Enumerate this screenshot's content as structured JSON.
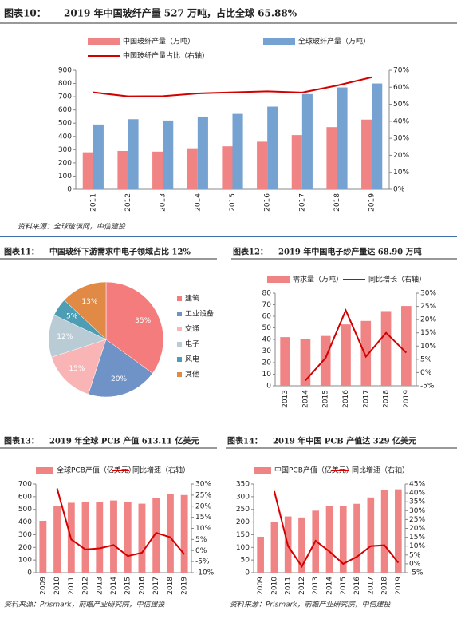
{
  "chart_data": [
    {
      "type": "combo",
      "figure_label": "图表10：",
      "title": "2019 年中国玻纤产量 527 万吨，占比全球 65.88%",
      "categories": [
        "2011",
        "2012",
        "2013",
        "2014",
        "2015",
        "2016",
        "2017",
        "2018",
        "2019"
      ],
      "series": [
        {
          "name": "中国玻纤产量（万吨）",
          "type": "bar",
          "color": "#f08384",
          "values": [
            280,
            290,
            285,
            310,
            325,
            360,
            410,
            470,
            527
          ]
        },
        {
          "name": "全球玻纤产量（万吨）",
          "type": "bar",
          "color": "#76a2d2",
          "values": [
            490,
            530,
            520,
            550,
            570,
            625,
            720,
            770,
            800
          ]
        },
        {
          "name": "中国玻纤产量占比（右轴）",
          "type": "line",
          "axis": "y2",
          "color": "#d40000",
          "values": [
            57,
            54.7,
            54.8,
            56.4,
            57,
            57.6,
            56.9,
            61,
            65.88
          ]
        }
      ],
      "ylim": [
        0,
        900
      ],
      "yticks": [
        0,
        100,
        200,
        300,
        400,
        500,
        600,
        700,
        800,
        900
      ],
      "y2lim": [
        0,
        70
      ],
      "y2ticks": [
        {
          "value": 0,
          "label": "0%"
        },
        {
          "value": 10,
          "label": "10%"
        },
        {
          "value": 20,
          "label": "20%"
        },
        {
          "value": 30,
          "label": "30%"
        },
        {
          "value": 40,
          "label": "40%"
        },
        {
          "value": 50,
          "label": "50%"
        },
        {
          "value": 60,
          "label": "60%"
        },
        {
          "value": 70,
          "label": "70%"
        }
      ],
      "source": "资料来源：全球玻璃网，中信建投"
    },
    {
      "type": "pie",
      "figure_label": "图表11：",
      "title": "中国玻纤下游需求中电子领域占比 12%",
      "categories": [
        "建筑",
        "工业设备",
        "交通",
        "电子",
        "风电",
        "其他"
      ],
      "values": [
        35,
        20,
        15,
        12,
        5,
        13
      ],
      "value_labels": [
        "35%",
        "20%",
        "15%",
        "12%",
        "5%",
        "13%"
      ],
      "colors": [
        "#f47c7c",
        "#6f93c6",
        "#f9b4b6",
        "#b9ccd6",
        "#4d9db5",
        "#e08a45"
      ]
    },
    {
      "type": "combo",
      "figure_label": "图表12：",
      "title": "2019 年中国电子纱产量达 68.90 万吨",
      "categories": [
        "2013",
        "2014",
        "2015",
        "2016",
        "2017",
        "2018",
        "2019"
      ],
      "series": [
        {
          "name": "需求量（万吨）",
          "type": "bar",
          "color": "#f08384",
          "values": [
            42,
            40.5,
            43,
            53,
            56,
            64.5,
            68.9
          ]
        },
        {
          "name": "同比增长（右轴）",
          "type": "line",
          "axis": "y2",
          "color": "#d40000",
          "values": [
            null,
            -3,
            5.5,
            23.5,
            6,
            15,
            7.5
          ]
        }
      ],
      "ylim": [
        0,
        80
      ],
      "yticks": [
        0,
        10,
        20,
        30,
        40,
        50,
        60,
        70,
        80
      ],
      "y2lim": [
        -5,
        30
      ],
      "y2ticks": [
        {
          "value": -5,
          "label": "-5%"
        },
        {
          "value": 0,
          "label": "0%"
        },
        {
          "value": 5,
          "label": "5%"
        },
        {
          "value": 10,
          "label": "10%"
        },
        {
          "value": 15,
          "label": "15%"
        },
        {
          "value": 20,
          "label": "20%"
        },
        {
          "value": 25,
          "label": "25%"
        },
        {
          "value": 30,
          "label": "30%"
        }
      ]
    },
    {
      "type": "combo",
      "figure_label": "图表13：",
      "title": "2019 年全球 PCB 产值 613.11 亿美元",
      "categories": [
        "2009",
        "2010",
        "2011",
        "2012",
        "2013",
        "2014",
        "2015",
        "2016",
        "2017",
        "2018",
        "2019"
      ],
      "series": [
        {
          "name": "全球PCB产值（亿美元）",
          "type": "bar",
          "color": "#f08384",
          "values": [
            410,
            525,
            552,
            555,
            555,
            570,
            555,
            545,
            588,
            624,
            613.11
          ]
        },
        {
          "name": "同比增速（右轴）",
          "type": "line",
          "axis": "y2",
          "color": "#d40000",
          "values": [
            null,
            28,
            5,
            0.5,
            1,
            2.5,
            -2.5,
            -1,
            8,
            6,
            -1.7
          ]
        }
      ],
      "ylim": [
        0,
        700
      ],
      "yticks": [
        0,
        100,
        200,
        300,
        400,
        500,
        600,
        700
      ],
      "y2lim": [
        -10,
        30
      ],
      "y2ticks": [
        {
          "value": -10,
          "label": "-10%"
        },
        {
          "value": -5,
          "label": "-5%"
        },
        {
          "value": 0,
          "label": "0%"
        },
        {
          "value": 5,
          "label": "5%"
        },
        {
          "value": 10,
          "label": "10%"
        },
        {
          "value": 15,
          "label": "15%"
        },
        {
          "value": 20,
          "label": "20%"
        },
        {
          "value": 25,
          "label": "25%"
        },
        {
          "value": 30,
          "label": "30%"
        }
      ],
      "source": "资料来源：Prismark，前瞻产业研究院，中信建投"
    },
    {
      "type": "combo",
      "figure_label": "图表14：",
      "title": "2019 年中国 PCB 产值达 329 亿美元",
      "categories": [
        "2009",
        "2010",
        "2011",
        "2012",
        "2013",
        "2014",
        "2015",
        "2016",
        "2017",
        "2018",
        "2019"
      ],
      "series": [
        {
          "name": "中国PCB产值（亿美元）",
          "type": "bar",
          "color": "#f08384",
          "values": [
            142,
            200,
            222,
            218,
            245,
            262,
            262,
            272,
            297,
            327,
            329
          ]
        },
        {
          "name": "同比增速（右轴）",
          "type": "line",
          "axis": "y2",
          "color": "#d40000",
          "values": [
            null,
            41,
            10,
            -1.5,
            13,
            7,
            0,
            4,
            10,
            10.5,
            0.6
          ]
        }
      ],
      "ylim": [
        0,
        350
      ],
      "yticks": [
        0,
        50,
        100,
        150,
        200,
        250,
        300,
        350
      ],
      "y2lim": [
        -5,
        45
      ],
      "y2ticks": [
        {
          "value": -5,
          "label": "-5%"
        },
        {
          "value": 0,
          "label": "0%"
        },
        {
          "value": 5,
          "label": "5%"
        },
        {
          "value": 10,
          "label": "10%"
        },
        {
          "value": 15,
          "label": "15%"
        },
        {
          "value": 20,
          "label": "20%"
        },
        {
          "value": 25,
          "label": "25%"
        },
        {
          "value": 30,
          "label": "30%"
        },
        {
          "value": 35,
          "label": "35%"
        },
        {
          "value": 40,
          "label": "40%"
        },
        {
          "value": 45,
          "label": "45%"
        }
      ],
      "source": "资料来源：Prismark，前瞻产业研究院，中信建投"
    }
  ]
}
